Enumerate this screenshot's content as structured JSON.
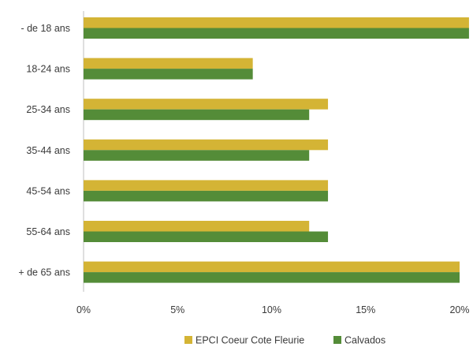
{
  "chart_data": {
    "type": "bar",
    "orientation": "horizontal",
    "categories": [
      "- de 18 ans",
      "18-24 ans",
      "25-34 ans",
      "35-44 ans",
      "45-54 ans",
      "55-64 ans",
      "+ de 65 ans"
    ],
    "series": [
      {
        "name": "EPCI Coeur Cote Fleurie",
        "color": "#d4b435",
        "values": [
          21,
          9,
          13,
          13,
          13,
          12,
          20
        ]
      },
      {
        "name": "Calvados",
        "color": "#548c38",
        "values": [
          21,
          9,
          12,
          12,
          13,
          13,
          20
        ]
      }
    ],
    "xlim": [
      0,
      20
    ],
    "xticks": [
      0,
      5,
      10,
      15,
      20
    ],
    "xtick_labels": [
      "0%",
      "5%",
      "10%",
      "15%",
      "20%"
    ],
    "grid": false,
    "legend_position": "bottom"
  }
}
